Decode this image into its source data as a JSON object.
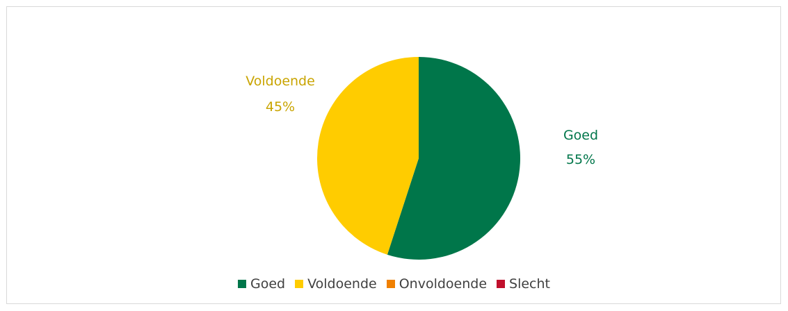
{
  "chart_data": {
    "type": "pie",
    "title": "",
    "series": [
      {
        "categories": [
          "Goed",
          "Voldoende",
          "Onvoldoende",
          "Slecht"
        ],
        "values": [
          55,
          45,
          0,
          0
        ],
        "colors": [
          "#00764a",
          "#ffcc00",
          "#f08000",
          "#c0102c"
        ],
        "data_labels": [
          {
            "name": "Goed",
            "value": "55%"
          },
          {
            "name": "Voldoende",
            "value": "45%"
          }
        ]
      }
    ],
    "legend": {
      "position": "bottom",
      "entries": [
        {
          "label": "Goed",
          "color": "#00764a"
        },
        {
          "label": "Voldoende",
          "color": "#ffcc00"
        },
        {
          "label": "Onvoldoende",
          "color": "#f08000"
        },
        {
          "label": "Slecht",
          "color": "#c0102c"
        }
      ]
    },
    "label_colors": {
      "Goed": "#00764a",
      "Voldoende": "#c9a400"
    }
  }
}
